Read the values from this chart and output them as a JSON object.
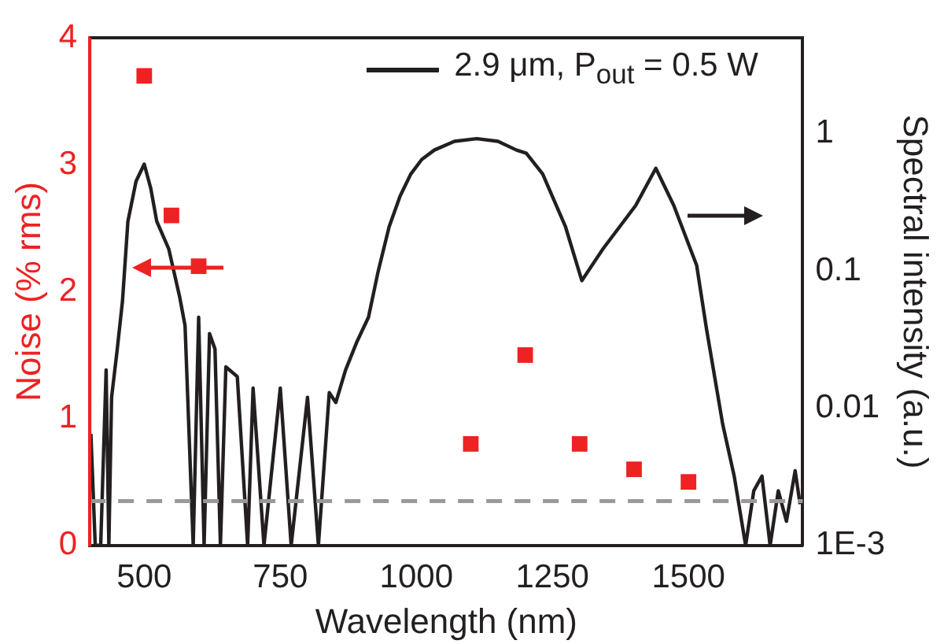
{
  "chart_data": {
    "type": "scatter",
    "xlabel": "Wavelength (nm)",
    "ylabel": "Noise (% rms)",
    "y2label": "Spectral intensity (a.u.)",
    "xlim": [
      400,
      1710
    ],
    "xticks": [
      500,
      750,
      1000,
      1250,
      1500
    ],
    "ylim": [
      0,
      4
    ],
    "yticks": [
      0,
      1,
      2,
      3,
      4
    ],
    "y2lim": [
      0.001,
      5
    ],
    "y2ticks": [
      {
        "value": 0.001,
        "label": "1E-3"
      },
      0.01,
      0.1,
      1
    ],
    "log": "y2",
    "grid": false,
    "legend": "top right",
    "marker": "square",
    "series": [
      {
        "color": "#ee2222",
        "x": [
          500,
          550,
          600,
          1100,
          1200,
          1300,
          1400,
          1500
        ],
        "values": [
          3.7,
          2.6,
          2.2,
          0.8,
          1.5,
          0.8,
          0.6,
          0.5
        ]
      },
      {
        "type": "line",
        "axis": "y2",
        "name": "2.9 μm, P$_{out}$ = 0.5 W",
        "color": "#231f20",
        "line_style": "solid",
        "marker": "none",
        "x": [
          402,
          410,
          420,
          430,
          435,
          440,
          450,
          460,
          470,
          485,
          500,
          512,
          523,
          545,
          565,
          575,
          590,
          600,
          610,
          620,
          630,
          640,
          650,
          671,
          690,
          700,
          720,
          750,
          770,
          800,
          820,
          840,
          852,
          870,
          890,
          912,
          930,
          950,
          970,
          990,
          1010,
          1033,
          1070,
          1111,
          1150,
          1184,
          1202,
          1232,
          1274,
          1304,
          1343,
          1403,
          1440,
          1473,
          1515,
          1533,
          1563,
          1584,
          1605,
          1620,
          1635,
          1650,
          1665,
          1680,
          1696,
          1705
        ],
        "values": [
          0.0065,
          0.001,
          0.001,
          0.019,
          0.001,
          0.012,
          0.026,
          0.06,
          0.23,
          0.45,
          0.6,
          0.4,
          0.23,
          0.145,
          0.065,
          0.04,
          0.001,
          0.046,
          0.001,
          0.035,
          0.027,
          0.001,
          0.02,
          0.017,
          0.001,
          0.014,
          0.001,
          0.014,
          0.001,
          0.012,
          0.001,
          0.013,
          0.011,
          0.019,
          0.03,
          0.046,
          0.1,
          0.21,
          0.35,
          0.51,
          0.65,
          0.76,
          0.88,
          0.92,
          0.88,
          0.76,
          0.72,
          0.51,
          0.21,
          0.085,
          0.145,
          0.3,
          0.56,
          0.3,
          0.11,
          0.038,
          0.0076,
          0.0032,
          0.001,
          0.0025,
          0.0032,
          0.001,
          0.0025,
          0.0015,
          0.0035,
          0.002
        ]
      }
    ],
    "ref_lines": [
      {
        "axis": "y",
        "value": 0.35,
        "color": "#999999",
        "line_style": "dashed"
      }
    ]
  }
}
